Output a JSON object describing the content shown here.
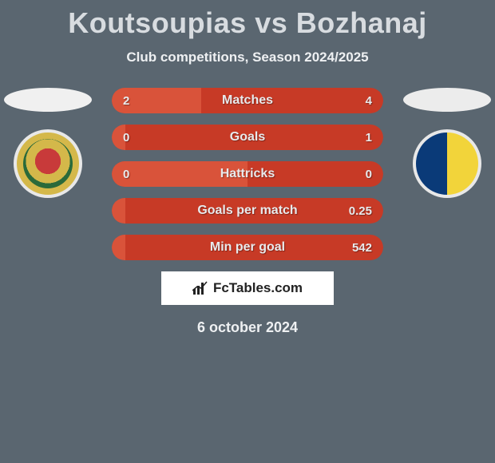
{
  "title": "Koutsoupias vs Bozhanaj",
  "subtitle": "Club competitions, Season 2024/2025",
  "date": "6 october 2024",
  "brand": "FcTables.com",
  "colors": {
    "left_fill": "#d9533a",
    "right_bg": "#c73a26",
    "neutral_bg": "#c73a26"
  },
  "bars": [
    {
      "label": "Matches",
      "left": "2",
      "right": "4",
      "left_pct": 33
    },
    {
      "label": "Goals",
      "left": "0",
      "right": "1",
      "left_pct": 5
    },
    {
      "label": "Hattricks",
      "left": "0",
      "right": "0",
      "left_pct": 50
    },
    {
      "label": "Goals per match",
      "left": "",
      "right": "0.25",
      "left_pct": 5
    },
    {
      "label": "Min per goal",
      "left": "",
      "right": "542",
      "left_pct": 5
    }
  ]
}
